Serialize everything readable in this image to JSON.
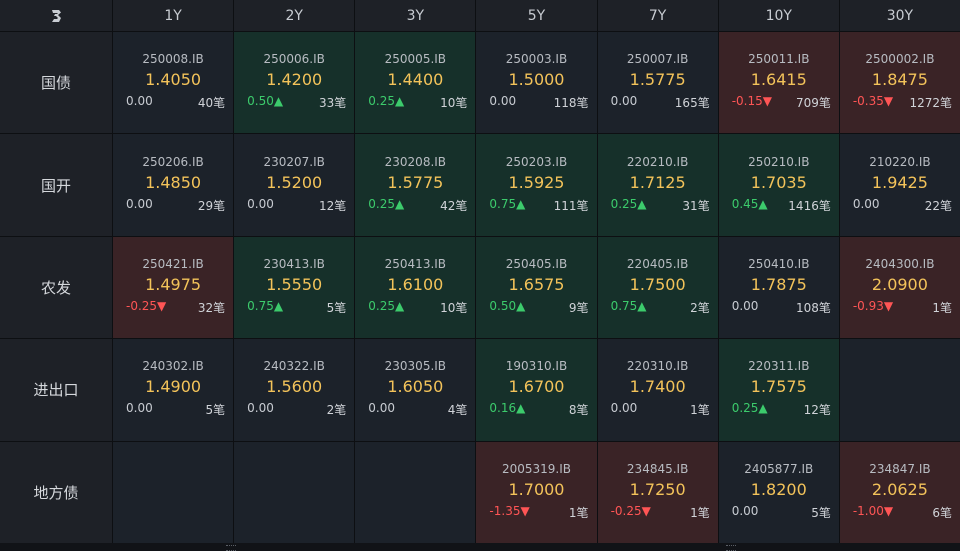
{
  "header": {
    "tenors": [
      "1Y",
      "2Y",
      "3Y",
      "5Y",
      "7Y",
      "10Y",
      "30Y"
    ]
  },
  "rows": [
    {
      "label": "国债",
      "cells": [
        {
          "code": "250008.IB",
          "yield": "1.4050",
          "change": "0.00",
          "dir": "flat",
          "count": "40笔"
        },
        {
          "code": "250006.IB",
          "yield": "1.4200",
          "change": "0.50▲",
          "dir": "up",
          "count": "33笔"
        },
        {
          "code": "250005.IB",
          "yield": "1.4400",
          "change": "0.25▲",
          "dir": "up",
          "count": "10笔"
        },
        {
          "code": "250003.IB",
          "yield": "1.5000",
          "change": "0.00",
          "dir": "flat",
          "count": "118笔"
        },
        {
          "code": "250007.IB",
          "yield": "1.5775",
          "change": "0.00",
          "dir": "flat",
          "count": "165笔"
        },
        {
          "code": "250011.IB",
          "yield": "1.6415",
          "change": "-0.15▼",
          "dir": "down",
          "count": "709笔"
        },
        {
          "code": "2500002.IB",
          "yield": "1.8475",
          "change": "-0.35▼",
          "dir": "down",
          "count": "1272笔"
        }
      ]
    },
    {
      "label": "国开",
      "cells": [
        {
          "code": "250206.IB",
          "yield": "1.4850",
          "change": "0.00",
          "dir": "flat",
          "count": "29笔"
        },
        {
          "code": "230207.IB",
          "yield": "1.5200",
          "change": "0.00",
          "dir": "flat",
          "count": "12笔"
        },
        {
          "code": "230208.IB",
          "yield": "1.5775",
          "change": "0.25▲",
          "dir": "up",
          "count": "42笔"
        },
        {
          "code": "250203.IB",
          "yield": "1.5925",
          "change": "0.75▲",
          "dir": "up",
          "count": "111笔"
        },
        {
          "code": "220210.IB",
          "yield": "1.7125",
          "change": "0.25▲",
          "dir": "up",
          "count": "31笔"
        },
        {
          "code": "250210.IB",
          "yield": "1.7035",
          "change": "0.45▲",
          "dir": "up",
          "count": "1416笔"
        },
        {
          "code": "210220.IB",
          "yield": "1.9425",
          "change": "0.00",
          "dir": "flat",
          "count": "22笔"
        }
      ]
    },
    {
      "label": "农发",
      "cells": [
        {
          "code": "250421.IB",
          "yield": "1.4975",
          "change": "-0.25▼",
          "dir": "down",
          "count": "32笔"
        },
        {
          "code": "230413.IB",
          "yield": "1.5550",
          "change": "0.75▲",
          "dir": "up",
          "count": "5笔"
        },
        {
          "code": "250413.IB",
          "yield": "1.6100",
          "change": "0.25▲",
          "dir": "up",
          "count": "10笔"
        },
        {
          "code": "250405.IB",
          "yield": "1.6575",
          "change": "0.50▲",
          "dir": "up",
          "count": "9笔"
        },
        {
          "code": "220405.IB",
          "yield": "1.7500",
          "change": "0.75▲",
          "dir": "up",
          "count": "2笔"
        },
        {
          "code": "250410.IB",
          "yield": "1.7875",
          "change": "0.00",
          "dir": "flat",
          "count": "108笔"
        },
        {
          "code": "2404300.IB",
          "yield": "2.0900",
          "change": "-0.93▼",
          "dir": "down",
          "count": "1笔"
        }
      ]
    },
    {
      "label": "进出口",
      "cells": [
        {
          "code": "240302.IB",
          "yield": "1.4900",
          "change": "0.00",
          "dir": "flat",
          "count": "5笔"
        },
        {
          "code": "240322.IB",
          "yield": "1.5600",
          "change": "0.00",
          "dir": "flat",
          "count": "2笔"
        },
        {
          "code": "230305.IB",
          "yield": "1.6050",
          "change": "0.00",
          "dir": "flat",
          "count": "4笔"
        },
        {
          "code": "190310.IB",
          "yield": "1.6700",
          "change": "0.16▲",
          "dir": "up",
          "count": "8笔"
        },
        {
          "code": "220310.IB",
          "yield": "1.7400",
          "change": "0.00",
          "dir": "flat",
          "count": "1笔"
        },
        {
          "code": "220311.IB",
          "yield": "1.7575",
          "change": "0.25▲",
          "dir": "up",
          "count": "12笔"
        },
        null
      ]
    },
    {
      "label": "地方债",
      "cells": [
        null,
        null,
        null,
        {
          "code": "2005319.IB",
          "yield": "1.7000",
          "change": "-1.35▼",
          "dir": "down",
          "count": "1笔"
        },
        {
          "code": "234845.IB",
          "yield": "1.7250",
          "change": "-0.25▼",
          "dir": "down",
          "count": "1笔"
        },
        {
          "code": "2405877.IB",
          "yield": "1.8200",
          "change": "0.00",
          "dir": "flat",
          "count": "5笔"
        },
        {
          "code": "234847.IB",
          "yield": "2.0625",
          "change": "-1.00▼",
          "dir": "down",
          "count": "6笔"
        }
      ]
    }
  ],
  "colors": {
    "up_bg": "#16302a",
    "down_bg": "#3a2326",
    "neutral_bg": "#1c222a",
    "yield_text": "#f3c35a",
    "up_text": "#3ccb6c",
    "down_text": "#ff5555"
  },
  "icons": {
    "corner": "app-logo-icon"
  }
}
